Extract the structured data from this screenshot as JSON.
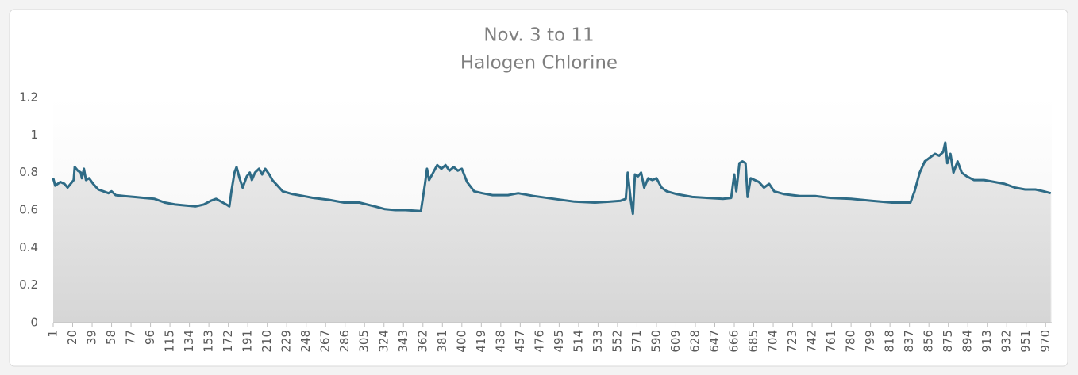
{
  "chart_data": {
    "type": "area-line",
    "title": "Nov. 3 to 11",
    "subtitle": "Halogen Chlorine",
    "color": "#2e6b86",
    "xlim": [
      1,
      976
    ],
    "xticks": [
      1,
      20,
      39,
      58,
      77,
      96,
      115,
      134,
      153,
      172,
      191,
      210,
      229,
      248,
      267,
      286,
      305,
      324,
      343,
      362,
      381,
      400,
      419,
      438,
      457,
      476,
      495,
      514,
      533,
      552,
      571,
      590,
      609,
      628,
      647,
      666,
      685,
      704,
      723,
      742,
      761,
      780,
      799,
      818,
      837,
      856,
      875,
      894,
      913,
      932,
      951,
      970
    ],
    "ylim": [
      0,
      1.2
    ],
    "yticks": [
      0,
      0.2,
      0.4,
      0.6,
      0.8,
      1,
      1.2
    ],
    "x": [
      1,
      3,
      8,
      12,
      15,
      18,
      21,
      22,
      25,
      28,
      29,
      31,
      33,
      36,
      40,
      45,
      50,
      55,
      58,
      62,
      70,
      80,
      90,
      100,
      110,
      120,
      130,
      140,
      148,
      155,
      160,
      165,
      170,
      173,
      175,
      178,
      180,
      183,
      186,
      190,
      193,
      195,
      198,
      202,
      205,
      208,
      212,
      215,
      220,
      225,
      235,
      245,
      255,
      270,
      285,
      300,
      315,
      325,
      335,
      345,
      360,
      364,
      366,
      368,
      372,
      376,
      380,
      384,
      388,
      392,
      396,
      400,
      405,
      412,
      420,
      430,
      445,
      455,
      470,
      490,
      510,
      530,
      545,
      555,
      560,
      562,
      565,
      567,
      569,
      572,
      575,
      578,
      582,
      586,
      590,
      595,
      600,
      610,
      625,
      640,
      655,
      663,
      666,
      668,
      671,
      674,
      677,
      679,
      682,
      686,
      690,
      695,
      700,
      705,
      715,
      730,
      745,
      760,
      780,
      800,
      820,
      838,
      842,
      847,
      852,
      857,
      862,
      866,
      870,
      872,
      874,
      877,
      880,
      884,
      888,
      893,
      900,
      910,
      920,
      930,
      940,
      950,
      960,
      968,
      975
    ],
    "values": [
      0.77,
      0.73,
      0.75,
      0.74,
      0.72,
      0.74,
      0.76,
      0.83,
      0.81,
      0.8,
      0.77,
      0.82,
      0.76,
      0.77,
      0.74,
      0.71,
      0.7,
      0.69,
      0.7,
      0.68,
      0.675,
      0.67,
      0.665,
      0.66,
      0.64,
      0.63,
      0.625,
      0.62,
      0.63,
      0.65,
      0.66,
      0.645,
      0.63,
      0.62,
      0.7,
      0.8,
      0.83,
      0.77,
      0.72,
      0.78,
      0.8,
      0.76,
      0.8,
      0.82,
      0.79,
      0.82,
      0.79,
      0.76,
      0.73,
      0.7,
      0.685,
      0.675,
      0.665,
      0.655,
      0.64,
      0.64,
      0.62,
      0.605,
      0.6,
      0.6,
      0.595,
      0.74,
      0.82,
      0.76,
      0.8,
      0.84,
      0.82,
      0.84,
      0.81,
      0.83,
      0.81,
      0.82,
      0.75,
      0.7,
      0.69,
      0.68,
      0.68,
      0.69,
      0.675,
      0.66,
      0.645,
      0.64,
      0.645,
      0.65,
      0.66,
      0.8,
      0.65,
      0.58,
      0.79,
      0.78,
      0.8,
      0.72,
      0.77,
      0.76,
      0.77,
      0.72,
      0.7,
      0.685,
      0.67,
      0.665,
      0.66,
      0.665,
      0.79,
      0.7,
      0.85,
      0.86,
      0.85,
      0.67,
      0.77,
      0.76,
      0.75,
      0.72,
      0.74,
      0.7,
      0.685,
      0.675,
      0.675,
      0.665,
      0.66,
      0.65,
      0.64,
      0.64,
      0.7,
      0.8,
      0.86,
      0.88,
      0.9,
      0.89,
      0.91,
      0.96,
      0.85,
      0.9,
      0.8,
      0.86,
      0.8,
      0.78,
      0.76,
      0.76,
      0.75,
      0.74,
      0.72,
      0.71,
      0.71,
      0.7,
      0.69
    ]
  }
}
